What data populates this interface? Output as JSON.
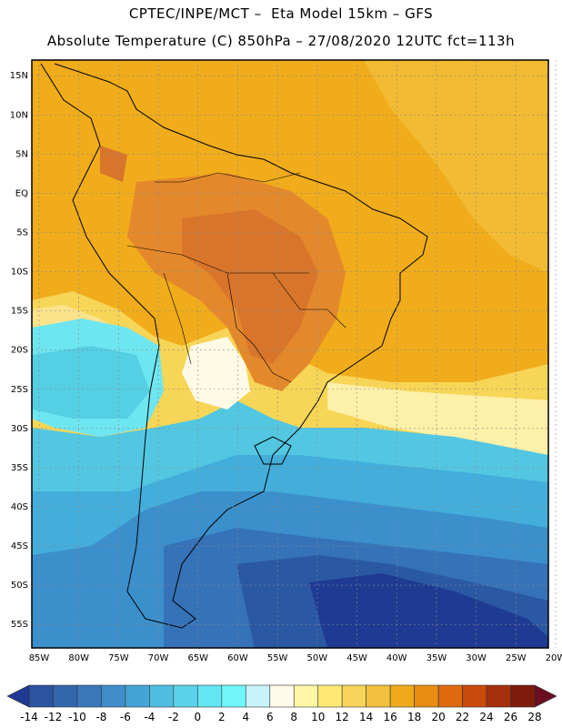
{
  "header": {
    "line1": "CPTEC/INPE/MCT –  Eta Model 15km – GFS",
    "line2": "Absolute Temperature (C) 850hPa – 27/08/2020 12UTC fct=113h"
  },
  "map": {
    "lat_labels": [
      "15N",
      "10N",
      "5N",
      "EQ",
      "5S",
      "10S",
      "15S",
      "20S",
      "25S",
      "30S",
      "35S",
      "40S",
      "45S",
      "50S",
      "55S"
    ],
    "lon_labels": [
      "85W",
      "80W",
      "75W",
      "70W",
      "65W",
      "60W",
      "55W",
      "50W",
      "45W",
      "40W",
      "35W",
      "30W",
      "25W",
      "20W"
    ],
    "lon_range": [
      -85,
      -20
    ],
    "lat_range": [
      -58,
      17
    ]
  },
  "colorbar": {
    "values": [
      "-14",
      "-12",
      "-10",
      "-8",
      "-6",
      "-4",
      "-2",
      "0",
      "2",
      "4",
      "6",
      "8",
      "10",
      "12",
      "14",
      "16",
      "18",
      "20",
      "22",
      "24",
      "26",
      "28"
    ],
    "colors": [
      "#1f3a93",
      "#2a53a0",
      "#3366ad",
      "#3a78bb",
      "#3f8ecb",
      "#45a4d6",
      "#4fbde0",
      "#5ad2ea",
      "#62e6f4",
      "#6ff7fb",
      "#c9f3fb",
      "#fffaea",
      "#fff7a6",
      "#fde873",
      "#f8d55a",
      "#f2c03e",
      "#eeaa1c",
      "#e88c14",
      "#de6a0d",
      "#c94a0b",
      "#a6300b",
      "#7e1c0c",
      "#6a1020"
    ]
  }
}
